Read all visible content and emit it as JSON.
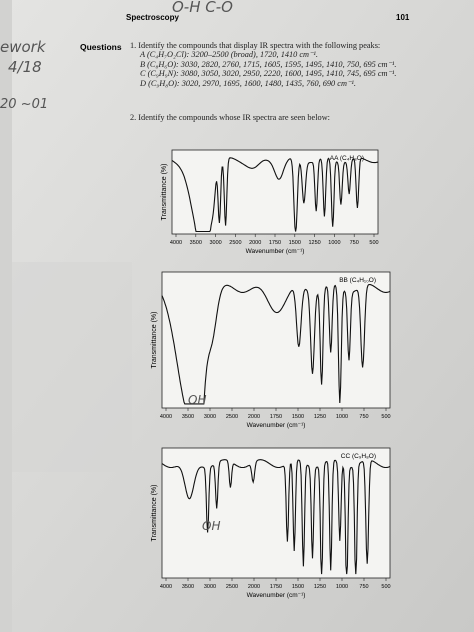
{
  "header": {
    "section": "Spectroscopy",
    "page_number": "101"
  },
  "handwriting": {
    "top": "O-H  C-O",
    "margin_1": "ework",
    "margin_2": "4/18",
    "margin_3": "20 ~01",
    "note_bb": "OH",
    "note_cc": "OH"
  },
  "questions": {
    "label": "Questions",
    "q1": {
      "text": "1. Identify the compounds that display IR spectra with the following peaks:",
      "items": [
        "A (C₄H₇O₂Cl): 3200–2500 (broad), 1720, 1410 cm⁻¹.",
        "B (C₈H₆O): 3030, 2820, 2760, 1715, 1605, 1595, 1495, 1410, 750, 695 cm⁻¹.",
        "C (C₉H₉N): 3080, 3050, 3020, 2950, 2220, 1600, 1495, 1410, 745, 695 cm⁻¹.",
        "D (C₉H₈O): 3020, 2970, 1695, 1600, 1480, 1435, 760, 690 cm⁻¹."
      ]
    },
    "q2": {
      "text": "2. Identify the compounds whose IR spectra are seen below:"
    }
  },
  "figures": [
    {
      "label": "AA (C₄H₈O)",
      "y_label": "Transmittance (%)",
      "x_label": "Wavenumber (cm⁻¹)",
      "x_ticks": [
        4000,
        3500,
        3000,
        2500,
        2000,
        1750,
        1500,
        1250,
        1000,
        750,
        500
      ]
    },
    {
      "label": "BB (C₄H₁₀O)",
      "y_label": "Transmittance (%)",
      "x_label": "Wavenumber (cm⁻¹)",
      "x_ticks": [
        4000,
        3500,
        3000,
        2500,
        2000,
        1750,
        1500,
        1250,
        1000,
        750,
        500
      ]
    },
    {
      "label": "CC (C₉H₈O)",
      "y_label": "Transmittance (%)",
      "x_label": "Wavenumber (cm⁻¹)",
      "x_ticks": [
        4000,
        3500,
        3000,
        2500,
        2000,
        1750,
        1500,
        1250,
        1000,
        750,
        500
      ]
    }
  ]
}
